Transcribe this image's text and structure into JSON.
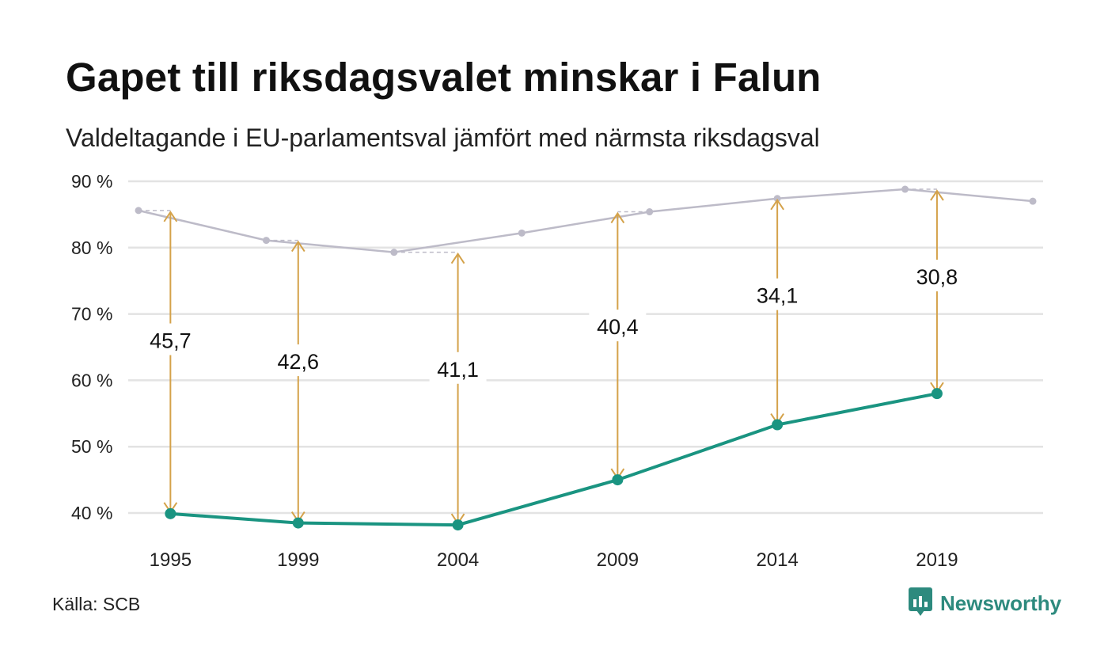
{
  "title": "Gapet till riksdagsvalet minskar i Falun",
  "subtitle": "Valdeltagande i EU-parlamentsval jämfört med närmsta riksdagsval",
  "source": "Källa: SCB",
  "brand": {
    "name": "Newsworthy",
    "icon": "bar-chart-bubble-icon",
    "color": "#2d8a7e"
  },
  "colors": {
    "eu_line": "#1a9481",
    "riksdag_line": "#bdbbc8",
    "gap_arrow": "#d4a24a",
    "grid": "#e3e3e3"
  },
  "chart_data": {
    "type": "line",
    "ylim": [
      40,
      90
    ],
    "y_ticks": [
      "90 %",
      "80 %",
      "70 %",
      "60 %",
      "50 %",
      "40 %"
    ],
    "y_tick_values": [
      90,
      80,
      70,
      60,
      50,
      40
    ],
    "x_ticks": [
      "1995",
      "1999",
      "2004",
      "2009",
      "2014",
      "2019"
    ],
    "grid": true,
    "series": [
      {
        "key": "eu",
        "x": [
          1995,
          1999,
          2004,
          2009,
          2014,
          2019
        ],
        "values": [
          39.9,
          38.5,
          38.2,
          45.0,
          53.3,
          58.0
        ]
      },
      {
        "key": "riksdag",
        "x": [
          1994,
          1998,
          2002,
          2006,
          2010,
          2014,
          2018,
          2022
        ],
        "values": [
          85.6,
          81.1,
          79.3,
          82.2,
          85.4,
          87.4,
          88.8,
          87.0
        ]
      }
    ],
    "gaps": [
      {
        "x": 1995,
        "from": 39.9,
        "to": 85.6,
        "label": "45,7"
      },
      {
        "x": 1999,
        "from": 38.5,
        "to": 81.1,
        "label": "42,6"
      },
      {
        "x": 2004,
        "from": 38.2,
        "to": 79.3,
        "label": "41,1"
      },
      {
        "x": 2009,
        "from": 45.0,
        "to": 85.4,
        "label": "40,4"
      },
      {
        "x": 2014,
        "from": 53.3,
        "to": 87.4,
        "label": "34,1"
      },
      {
        "x": 2019,
        "from": 58.0,
        "to": 88.8,
        "label": "30,8"
      }
    ]
  }
}
